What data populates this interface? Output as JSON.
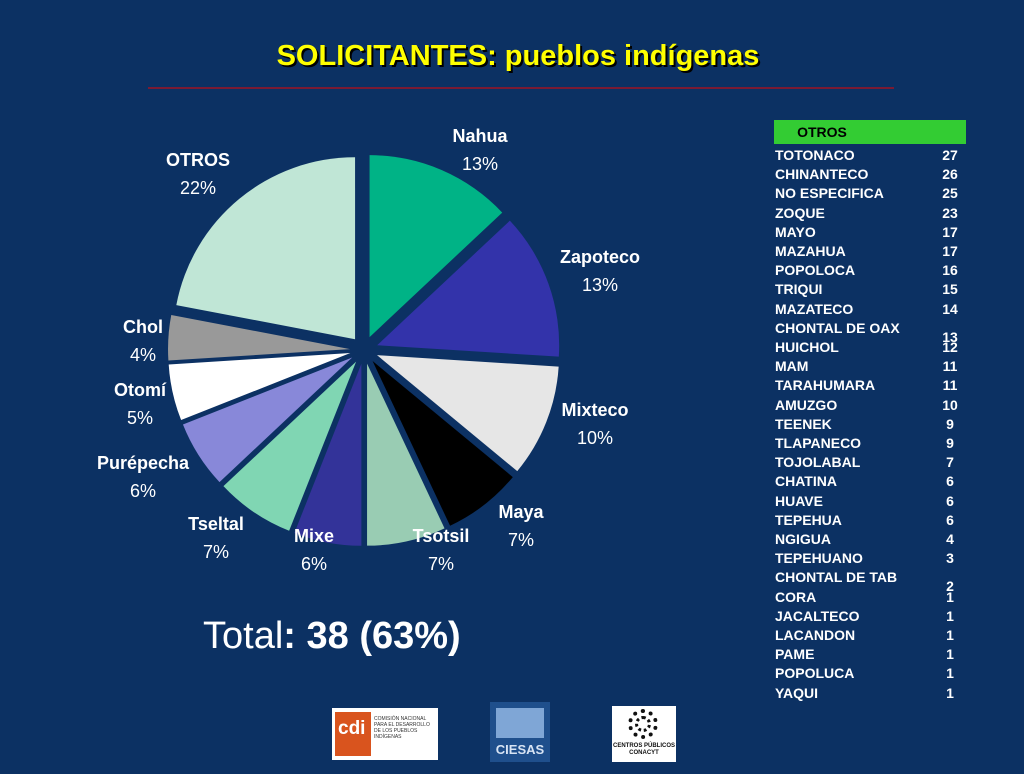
{
  "slide": {
    "title": "SOLICITANTES: pueblos indígenas",
    "total_label": "Total",
    "total_value": ": 38 (63%)"
  },
  "chart_data": {
    "type": "pie",
    "title": "SOLICITANTES: pueblos indígenas",
    "slices": [
      {
        "label": "Nahua",
        "value": 13,
        "pct": "13%",
        "color": "#00b386"
      },
      {
        "label": "Zapoteco",
        "value": 13,
        "pct": "13%",
        "color": "#3333aa"
      },
      {
        "label": "Mixteco",
        "value": 10,
        "pct": "10%",
        "color": "#e6e6e6"
      },
      {
        "label": "Maya",
        "value": 7,
        "pct": "7%",
        "color": "#000000"
      },
      {
        "label": "Tsotsil",
        "value": 7,
        "pct": "7%",
        "color": "#99ccb3"
      },
      {
        "label": "Mixe",
        "value": 6,
        "pct": "6%",
        "color": "#333399"
      },
      {
        "label": "Tseltal",
        "value": 7,
        "pct": "7%",
        "color": "#80d6b3"
      },
      {
        "label": "Purépecha",
        "value": 6,
        "pct": "6%",
        "color": "#8888d9"
      },
      {
        "label": "Otomí",
        "value": 5,
        "pct": "5%",
        "color": "#ffffff"
      },
      {
        "label": "Chol",
        "value": 4,
        "pct": "4%",
        "color": "#999999"
      },
      {
        "label": "OTROS",
        "value": 22,
        "pct": "22%",
        "color": "#c0e6d6"
      }
    ]
  },
  "otros_table": {
    "header": "OTROS",
    "header_color": "#33cc33",
    "rows": [
      {
        "name": "TOTONACO",
        "count": "27"
      },
      {
        "name": "CHINANTECO",
        "count": "26"
      },
      {
        "name": "NO ESPECIFICA",
        "count": "25"
      },
      {
        "name": "ZOQUE",
        "count": "23"
      },
      {
        "name": "MAYO",
        "count": "17"
      },
      {
        "name": "MAZAHUA",
        "count": "17"
      },
      {
        "name": "POPOLOCA",
        "count": "16"
      },
      {
        "name": "TRIQUI",
        "count": "15"
      },
      {
        "name": "MAZATECO",
        "count": "14"
      },
      {
        "name": "CHONTAL DE OAX",
        "count": "13"
      },
      {
        "name": "HUICHOL",
        "count": "12"
      },
      {
        "name": "MAM",
        "count": "11"
      },
      {
        "name": "TARAHUMARA",
        "count": "11"
      },
      {
        "name": "AMUZGO",
        "count": "10"
      },
      {
        "name": "TEENEK",
        "count": "9"
      },
      {
        "name": "TLAPANECO",
        "count": "9"
      },
      {
        "name": "TOJOLABAL",
        "count": "7"
      },
      {
        "name": "CHATINA",
        "count": "6"
      },
      {
        "name": "HUAVE",
        "count": "6"
      },
      {
        "name": "TEPEHUA",
        "count": "6"
      },
      {
        "name": "NGIGUA",
        "count": "4"
      },
      {
        "name": "TEPEHUANO",
        "count": "3"
      },
      {
        "name": "CHONTAL DE TAB",
        "count": "2"
      },
      {
        "name": "CORA",
        "count": "1"
      },
      {
        "name": "JACALTECO",
        "count": "1"
      },
      {
        "name": "LACANDON",
        "count": "1"
      },
      {
        "name": "PAME",
        "count": "1"
      },
      {
        "name": "POPOLUCA",
        "count": "1"
      },
      {
        "name": "YAQUI",
        "count": "1"
      }
    ]
  },
  "logos": {
    "cdi": {
      "letters": "cdi",
      "text": "COMISIÓN NACIONAL PARA EL DESARROLLO DE LOS PUEBLOS INDÍGENAS"
    },
    "ciesas": {
      "text": "CIESAS"
    },
    "conacyt": {
      "text": "CENTROS PÚBLICOS CONACYT"
    }
  }
}
